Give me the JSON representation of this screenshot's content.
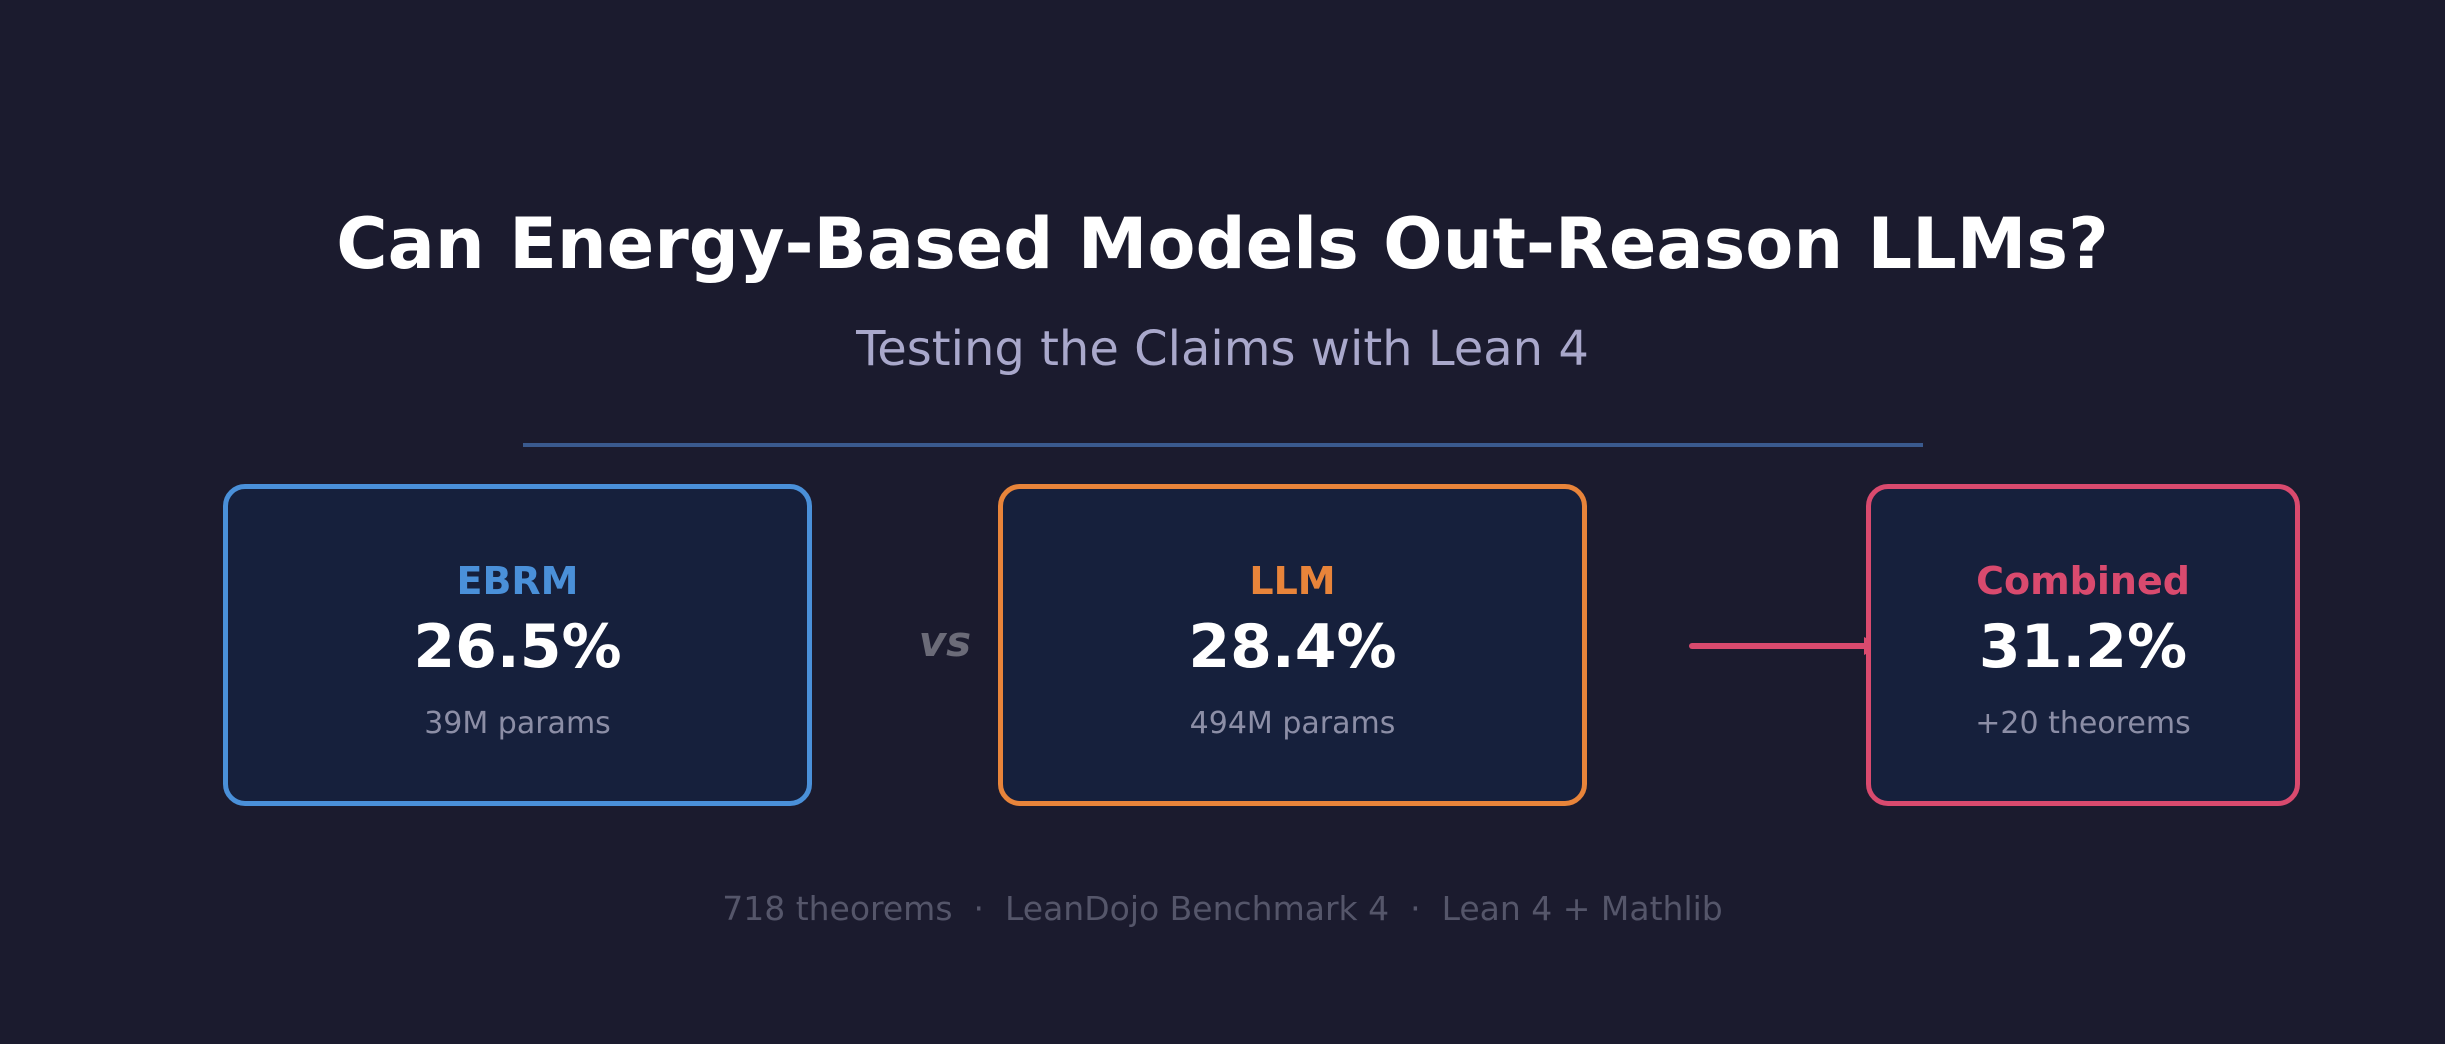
{
  "header": {
    "title": "Can Energy-Based Models Out-Reason LLMs?",
    "subtitle": "Testing the Claims with Lean 4"
  },
  "cards": [
    {
      "label": "EBRM",
      "value": "26.5%",
      "note": "39M params",
      "accent": "#4a90d9"
    },
    {
      "label": "LLM",
      "value": "28.4%",
      "note": "494M params",
      "accent": "#e8843a"
    },
    {
      "label": "Combined",
      "value": "31.2%",
      "note": "+20 theorems",
      "accent": "#d94a6e"
    }
  ],
  "connectors": {
    "vs_label": "vs",
    "arrow_icon": "arrow-right-icon"
  },
  "footer": {
    "text": "718 theorems  ·  LeanDojo Benchmark 4  ·  Lean 4 + Mathlib"
  },
  "colors": {
    "background": "#1b1b2e",
    "card_background": "#16203c",
    "divider": "#3a5a8e",
    "ebrm": "#4a90d9",
    "llm": "#e8843a",
    "combined": "#d94a6e"
  }
}
